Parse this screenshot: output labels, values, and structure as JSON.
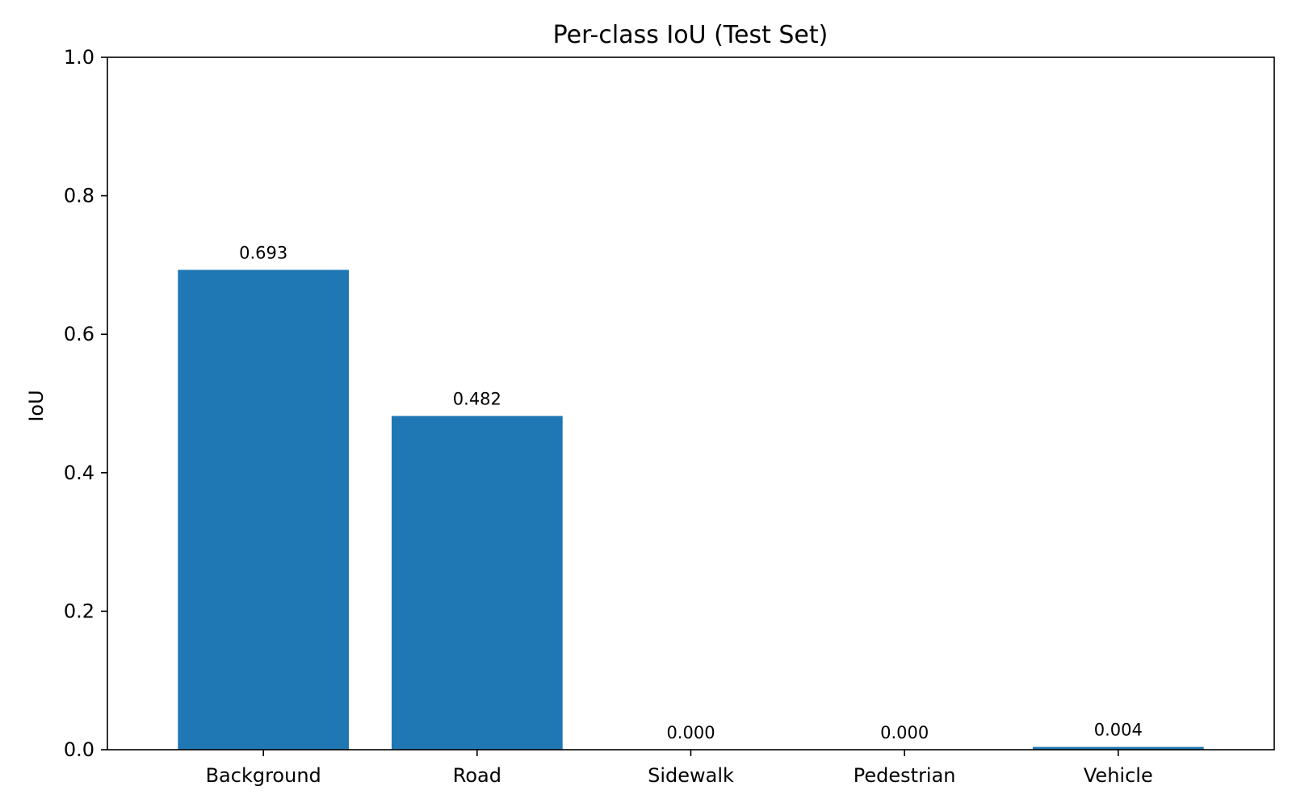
{
  "chart_data": {
    "type": "bar",
    "title": "Per-class IoU (Test Set)",
    "xlabel": "",
    "ylabel": "IoU",
    "categories": [
      "Background",
      "Road",
      "Sidewalk",
      "Pedestrian",
      "Vehicle"
    ],
    "values": [
      0.693,
      0.482,
      0.0,
      0.0,
      0.004
    ],
    "value_labels": [
      "0.693",
      "0.482",
      "0.000",
      "0.000",
      "0.004"
    ],
    "ylim": [
      0,
      1.0
    ],
    "yticks": [
      0.0,
      0.2,
      0.4,
      0.6,
      0.8,
      1.0
    ],
    "ytick_labels": [
      "0.0",
      "0.2",
      "0.4",
      "0.6",
      "0.8",
      "1.0"
    ],
    "grid": false,
    "bar_color": "#1f77b4"
  }
}
